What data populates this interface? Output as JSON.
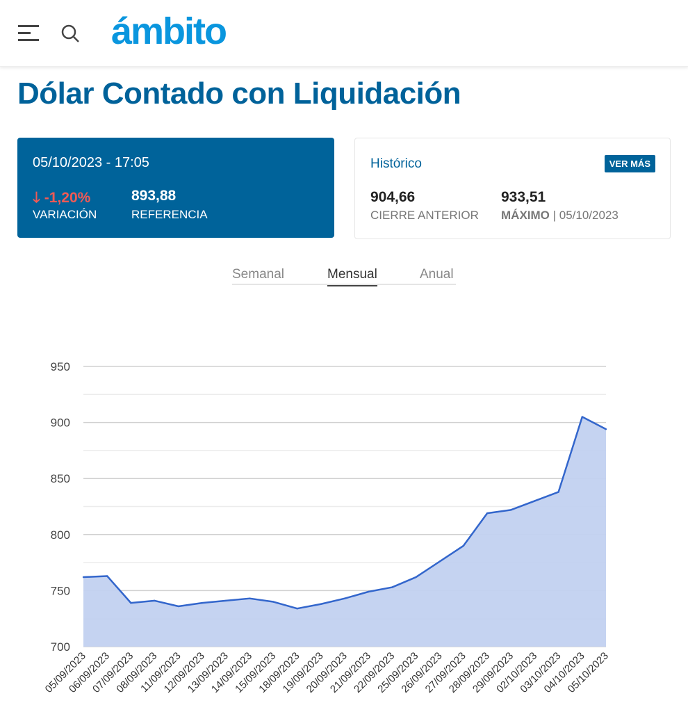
{
  "header": {
    "logo": "ámbito",
    "menu_icon": "menu-icon",
    "search_icon": "search-icon"
  },
  "page_title": "Dólar Contado con Liquidación",
  "quote": {
    "datetime": "05/10/2023 - 17:05",
    "variation": "-1,20%",
    "variation_label": "VARIACIÓN",
    "reference": "893,88",
    "reference_label": "REFERENCIA",
    "down_color": "#f05a55"
  },
  "historico": {
    "title": "Histórico",
    "button": "VER MÁS",
    "prev_close": "904,66",
    "prev_close_label": "CIERRE ANTERIOR",
    "max": "933,51",
    "max_label": "MÁXIMO",
    "max_date": "05/10/2023"
  },
  "tabs": [
    {
      "label": "Semanal"
    },
    {
      "label": "Mensual",
      "active": true
    },
    {
      "label": "Anual"
    }
  ],
  "chart_data": {
    "type": "area",
    "categories": [
      "05/09/2023",
      "06/09/2023",
      "07/09/2023",
      "08/09/2023",
      "11/09/2023",
      "12/09/2023",
      "13/09/2023",
      "14/09/2023",
      "15/09/2023",
      "18/09/2023",
      "19/09/2023",
      "20/09/2023",
      "21/09/2023",
      "22/09/2023",
      "25/09/2023",
      "26/09/2023",
      "27/09/2023",
      "28/09/2023",
      "29/09/2023",
      "02/10/2023",
      "03/10/2023",
      "04/10/2023",
      "05/10/2023"
    ],
    "values": [
      762,
      763,
      739,
      741,
      736,
      739,
      741,
      743,
      740,
      734,
      738,
      743,
      749,
      753,
      762,
      776,
      790,
      819,
      822,
      830,
      838,
      905,
      894
    ],
    "ylim": [
      700,
      950
    ],
    "yticks": [
      "700",
      "750",
      "800",
      "850",
      "900",
      "950"
    ],
    "grid": true,
    "line_color": "#3366cc",
    "fill_color": "#c2d1f0"
  }
}
